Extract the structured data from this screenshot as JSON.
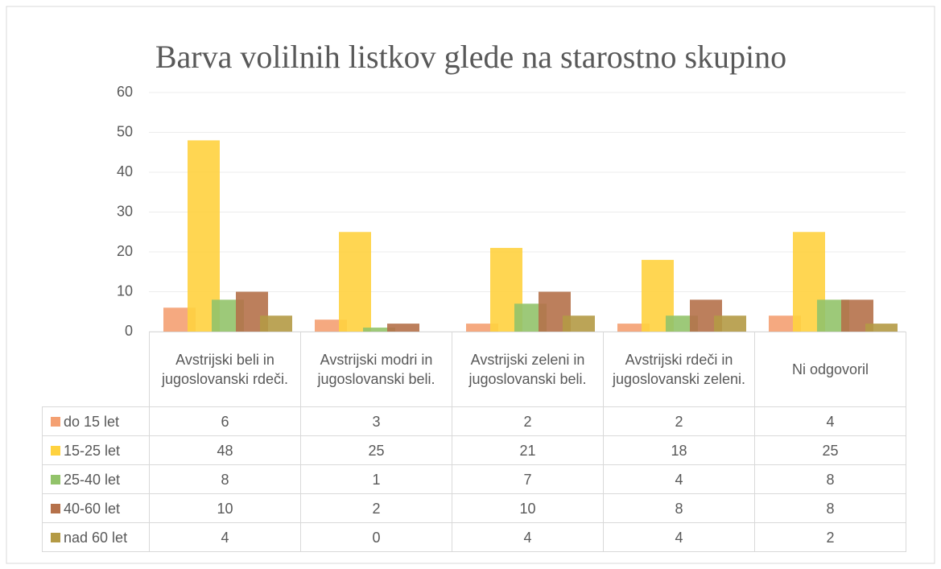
{
  "chart_data": {
    "type": "bar",
    "title": "Barva volilnih listkov glede na starostno skupino",
    "categories": [
      "Avstrijski beli in jugoslovanski rdeči.",
      "Avstrijski modri in jugoslovanski beli.",
      "Avstrijski zeleni in jugoslovanski beli.",
      "Avstrijski rdeči in jugoslovanski zeleni.",
      "Ni odgovoril"
    ],
    "series": [
      {
        "name": "do 15 let",
        "color": "#f4a072",
        "values": [
          6,
          3,
          2,
          2,
          4
        ]
      },
      {
        "name": "15-25 let",
        "color": "#ffd23f",
        "values": [
          48,
          25,
          21,
          18,
          25
        ]
      },
      {
        "name": "25-40 let",
        "color": "#92c36a",
        "values": [
          8,
          1,
          7,
          4,
          8
        ]
      },
      {
        "name": "40-60 let",
        "color": "#b5714a",
        "values": [
          10,
          2,
          10,
          8,
          8
        ]
      },
      {
        "name": "nad 60 let",
        "color": "#b49a45",
        "values": [
          4,
          0,
          4,
          4,
          2
        ]
      }
    ],
    "ylim": [
      0,
      60
    ],
    "yticks": [
      0,
      10,
      20,
      30,
      40,
      50,
      60
    ],
    "grid": true
  }
}
